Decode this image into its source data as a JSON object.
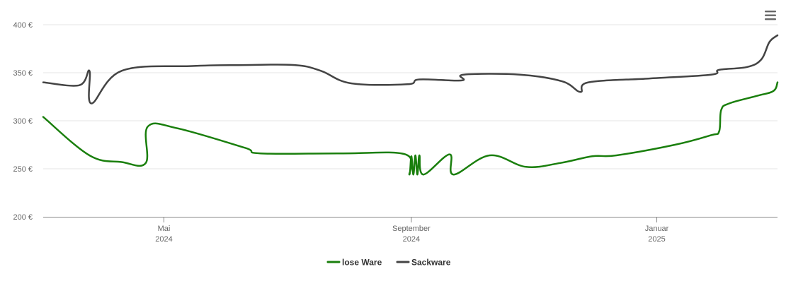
{
  "chart_data": {
    "type": "line",
    "title": "",
    "xlabel": "",
    "ylabel": "",
    "x_range": [
      "2024-03-02",
      "2025-03-02"
    ],
    "ylim": [
      200,
      400
    ],
    "y_ticks": [
      200,
      250,
      300,
      350,
      400
    ],
    "y_tick_labels": [
      "200 €",
      "250 €",
      "300 €",
      "350 €",
      "400 €"
    ],
    "x_ticks": [
      {
        "date": "2024-05-01",
        "label": "Mai",
        "year": "2024"
      },
      {
        "date": "2024-09-01",
        "label": "September",
        "year": "2024"
      },
      {
        "date": "2025-01-01",
        "label": "Januar",
        "year": "2025"
      }
    ],
    "grid": true,
    "legend_position": "bottom-center",
    "series": [
      {
        "name": "lose Ware",
        "color": "#1a7f0d",
        "points": [
          [
            "2024-03-02",
            304
          ],
          [
            "2024-03-25",
            264
          ],
          [
            "2024-04-10",
            257
          ],
          [
            "2024-04-22",
            256
          ],
          [
            "2024-04-23",
            294
          ],
          [
            "2024-05-08",
            292
          ],
          [
            "2024-06-10",
            272
          ],
          [
            "2024-06-18",
            266
          ],
          [
            "2024-07-28",
            266
          ],
          [
            "2024-08-29",
            265
          ],
          [
            "2024-08-31",
            244
          ],
          [
            "2024-09-01",
            263
          ],
          [
            "2024-09-02",
            244
          ],
          [
            "2024-09-03",
            264
          ],
          [
            "2024-09-04",
            244
          ],
          [
            "2024-09-05",
            264
          ],
          [
            "2024-09-07",
            244
          ],
          [
            "2024-09-20",
            265
          ],
          [
            "2024-09-22",
            244
          ],
          [
            "2024-10-10",
            264
          ],
          [
            "2024-10-28",
            252
          ],
          [
            "2024-11-14",
            256
          ],
          [
            "2024-11-30",
            263
          ],
          [
            "2024-12-12",
            264
          ],
          [
            "2025-01-10",
            275
          ],
          [
            "2025-01-28",
            285
          ],
          [
            "2025-02-01",
            289
          ],
          [
            "2025-02-02",
            311
          ],
          [
            "2025-02-06",
            318
          ],
          [
            "2025-02-20",
            326
          ],
          [
            "2025-02-28",
            331
          ],
          [
            "2025-03-02",
            340
          ]
        ]
      },
      {
        "name": "Sackware",
        "color": "#444444",
        "points": [
          [
            "2024-03-02",
            340
          ],
          [
            "2024-03-20",
            337
          ],
          [
            "2024-03-25",
            352
          ],
          [
            "2024-03-26",
            318
          ],
          [
            "2024-04-10",
            352
          ],
          [
            "2024-05-15",
            357
          ],
          [
            "2024-06-10",
            358
          ],
          [
            "2024-07-05",
            358
          ],
          [
            "2024-07-18",
            352
          ],
          [
            "2024-08-02",
            339
          ],
          [
            "2024-08-30",
            338
          ],
          [
            "2024-09-05",
            343
          ],
          [
            "2024-09-26",
            342
          ],
          [
            "2024-09-27",
            348
          ],
          [
            "2024-10-25",
            348
          ],
          [
            "2024-11-15",
            341
          ],
          [
            "2024-11-24",
            330
          ],
          [
            "2024-11-28",
            340
          ],
          [
            "2024-12-28",
            344
          ],
          [
            "2025-01-28",
            348
          ],
          [
            "2025-02-01",
            353
          ],
          [
            "2025-02-15",
            356
          ],
          [
            "2025-02-22",
            364
          ],
          [
            "2025-02-26",
            382
          ],
          [
            "2025-03-02",
            389
          ]
        ]
      }
    ]
  }
}
